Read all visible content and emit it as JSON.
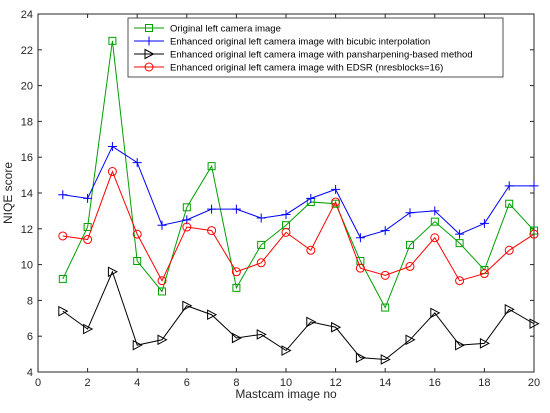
{
  "chart_data": {
    "type": "line",
    "xlabel": "Mastcam image no",
    "ylabel": "NIQE score",
    "xlim": [
      0,
      20
    ],
    "ylim": [
      4,
      24
    ],
    "xticks": [
      "0",
      "2",
      "4",
      "6",
      "8",
      "10",
      "12",
      "14",
      "16",
      "18",
      "20"
    ],
    "yticks": [
      "4",
      "6",
      "8",
      "10",
      "12",
      "14",
      "16",
      "18",
      "20",
      "22",
      "24"
    ],
    "grid": false,
    "legend_position": "top-center",
    "x": [
      1,
      2,
      3,
      4,
      5,
      6,
      7,
      8,
      9,
      10,
      11,
      12,
      13,
      14,
      15,
      16,
      17,
      18,
      19,
      20
    ],
    "series": [
      {
        "name": "Original left camera image",
        "color": "#00a000",
        "marker": "square",
        "values": [
          9.2,
          12.1,
          22.5,
          10.2,
          8.5,
          13.2,
          15.5,
          8.7,
          11.1,
          12.2,
          13.5,
          13.4,
          10.2,
          7.6,
          11.1,
          12.4,
          11.2,
          9.7,
          13.4,
          11.9
        ]
      },
      {
        "name": "Enhanced original left camera image with bicubic interpolation",
        "color": "#0000ff",
        "marker": "plus",
        "values": [
          13.9,
          13.7,
          16.6,
          15.7,
          12.2,
          12.5,
          13.1,
          13.1,
          12.6,
          12.8,
          13.7,
          14.2,
          11.5,
          11.9,
          12.9,
          13.0,
          11.7,
          12.3,
          14.4,
          14.4
        ]
      },
      {
        "name": "Enhanced original left camera image with pansharpening-based method",
        "color": "#000000",
        "marker": "triangle-right",
        "values": [
          7.4,
          6.4,
          9.6,
          5.5,
          5.8,
          7.7,
          7.2,
          5.9,
          6.1,
          5.2,
          6.8,
          6.5,
          4.8,
          4.7,
          5.8,
          7.3,
          5.5,
          5.6,
          7.5,
          6.7
        ]
      },
      {
        "name": "Enhanced original left camera image with EDSR (nresblocks=16)",
        "color": "#ff0000",
        "marker": "circle",
        "values": [
          11.6,
          11.4,
          15.2,
          11.7,
          9.1,
          12.1,
          11.9,
          9.6,
          10.1,
          11.8,
          10.8,
          13.5,
          9.8,
          9.4,
          9.9,
          11.5,
          9.1,
          9.5,
          10.8,
          11.7
        ]
      }
    ]
  }
}
